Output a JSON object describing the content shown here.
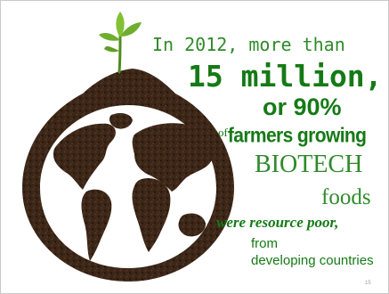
{
  "slide": {
    "line_1": "In 2012, more than",
    "line_2": "15 million,",
    "line_3": "or 90%",
    "line_4_of": "of",
    "line_4_main": "farmers growing",
    "line_5": "BIOTECH",
    "line_6": "foods",
    "line_7": "were resource poor,",
    "line_8": "from",
    "line_9": "developing countries",
    "page_number": "15"
  },
  "illustration": {
    "subject": "soil globe with sprouting seedling",
    "soil_color": "#3b2618",
    "leaf_color": "#6fae2c"
  },
  "colors": {
    "text_dark_green": "#157a16",
    "text_green": "#2e8b2a",
    "background": "#ffffff"
  }
}
